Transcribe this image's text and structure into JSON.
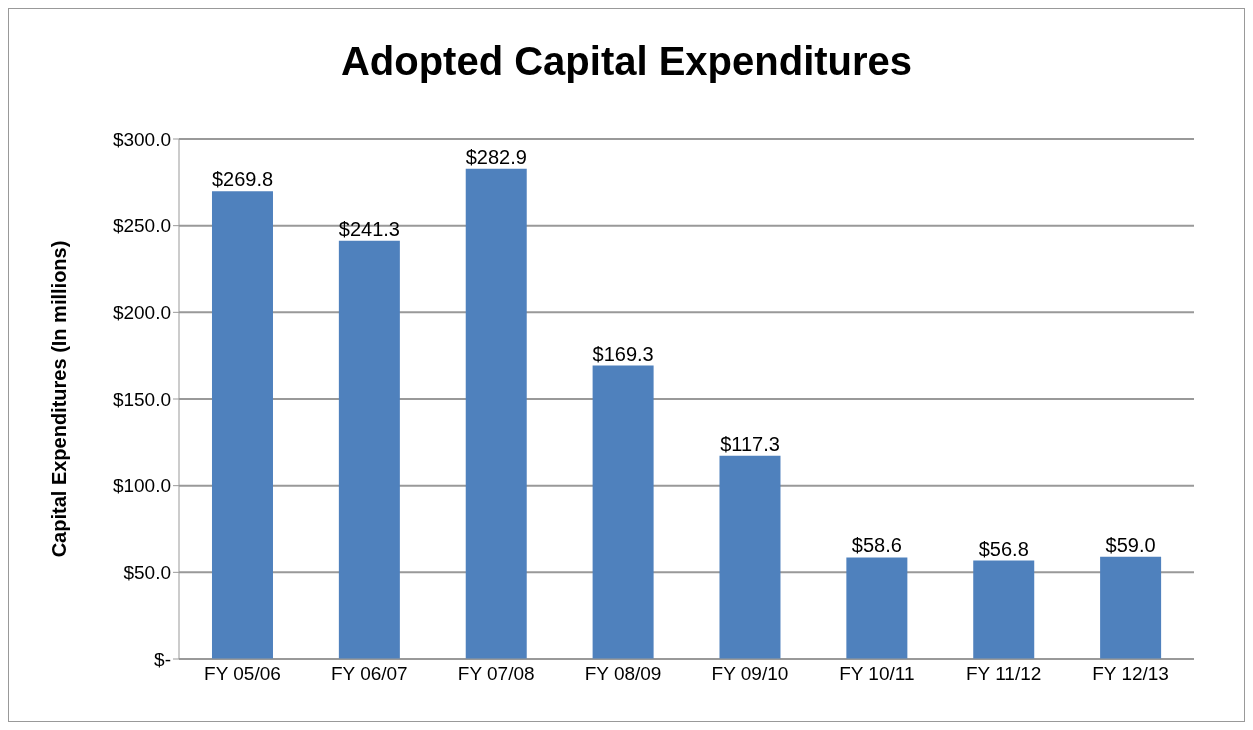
{
  "chart_data": {
    "type": "bar",
    "title": "Adopted Capital Expenditures",
    "ylabel": "Capital Expenditures (In millions)",
    "categories": [
      "FY 05/06",
      "FY 06/07",
      "FY 07/08",
      "FY 08/09",
      "FY 09/10",
      "FY 10/11",
      "FY 11/12",
      "FY 12/13"
    ],
    "values": [
      269.8,
      241.3,
      282.9,
      169.3,
      117.3,
      58.6,
      56.8,
      59.0
    ],
    "value_labels": [
      "$269.8",
      "$241.3",
      "$282.9",
      "$169.3",
      "$117.3",
      "$58.6",
      "$56.8",
      "$59.0"
    ],
    "color": "#4f81bd",
    "ylim": [
      0,
      300
    ],
    "yticks": [
      {
        "value": 0,
        "label": "$-"
      },
      {
        "value": 50,
        "label": "$50.0"
      },
      {
        "value": 100,
        "label": "$100.0"
      },
      {
        "value": 150,
        "label": "$150.0"
      },
      {
        "value": 200,
        "label": "$200.0"
      },
      {
        "value": 250,
        "label": "$250.0"
      },
      {
        "value": 300,
        "label": "$300.0"
      }
    ],
    "grid": "y",
    "legend": false
  }
}
